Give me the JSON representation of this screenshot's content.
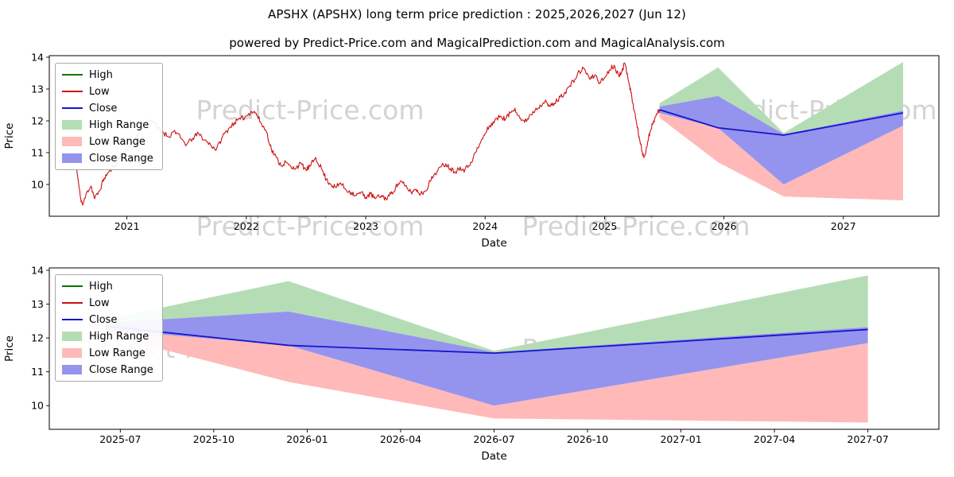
{
  "figure": {
    "title": "APSHX (APSHX) long term price prediction : 2025,2026,2027 (Jun 12)",
    "subtitle": "powered by Predict-Price.com and MagicalPrediction.com and MagicalAnalysis.com",
    "watermark_text": "Predict-Price.com",
    "background": "#ffffff"
  },
  "colors": {
    "high_line": "#007700",
    "low_line": "#cc1111",
    "close_line": "#1515cc",
    "high_range": "#b5ddb5",
    "low_range": "#ffb9b9",
    "close_range": "#9494ee",
    "watermark": "#c9c9c9",
    "axis": "#000000"
  },
  "legend": {
    "items": [
      {
        "label": "High",
        "swatch": "line",
        "color_key": "high_line"
      },
      {
        "label": "Low",
        "swatch": "line",
        "color_key": "low_line"
      },
      {
        "label": "Close",
        "swatch": "line",
        "color_key": "close_line"
      },
      {
        "label": "High Range",
        "swatch": "patch",
        "color_key": "high_range"
      },
      {
        "label": "Low Range",
        "swatch": "patch",
        "color_key": "low_range"
      },
      {
        "label": "Close Range",
        "swatch": "patch",
        "color_key": "close_range"
      }
    ]
  },
  "chart_data": [
    {
      "type": "line",
      "name": "history-and-forecast",
      "title": "",
      "xlabel": "Date",
      "ylabel": "Price",
      "xlim": [
        2020.35,
        2027.8
      ],
      "ylim": [
        9.0,
        14.05
      ],
      "xticks": {
        "values": [
          2021,
          2022,
          2023,
          2024,
          2025,
          2026,
          2027
        ],
        "labels": [
          "2021",
          "2022",
          "2023",
          "2024",
          "2025",
          "2026",
          "2027"
        ]
      },
      "yticks": {
        "values": [
          10,
          11,
          12,
          13,
          14
        ],
        "labels": [
          "10",
          "11",
          "12",
          "13",
          "14"
        ]
      },
      "history": {
        "name": "Low",
        "color_key": "low_line",
        "x": [
          2020.58,
          2020.61,
          2020.63,
          2020.67,
          2020.7,
          2020.73,
          2020.77,
          2020.81,
          2020.85,
          2020.9,
          2020.95,
          2021.0,
          2021.05,
          2021.1,
          2021.15,
          2021.2,
          2021.25,
          2021.3,
          2021.35,
          2021.4,
          2021.45,
          2021.5,
          2021.55,
          2021.6,
          2021.65,
          2021.7,
          2021.75,
          2021.8,
          2021.85,
          2021.9,
          2021.95,
          2022.0,
          2022.04,
          2022.08,
          2022.12,
          2022.17,
          2022.21,
          2022.25,
          2022.29,
          2022.33,
          2022.38,
          2022.42,
          2022.46,
          2022.5,
          2022.54,
          2022.58,
          2022.63,
          2022.67,
          2022.71,
          2022.75,
          2022.79,
          2022.83,
          2022.88,
          2022.92,
          2022.96,
          2023.0,
          2023.04,
          2023.08,
          2023.13,
          2023.17,
          2023.21,
          2023.25,
          2023.29,
          2023.33,
          2023.38,
          2023.42,
          2023.46,
          2023.5,
          2023.54,
          2023.58,
          2023.63,
          2023.67,
          2023.71,
          2023.75,
          2023.79,
          2023.83,
          2023.88,
          2023.92,
          2023.96,
          2024.0,
          2024.04,
          2024.08,
          2024.13,
          2024.17,
          2024.21,
          2024.25,
          2024.29,
          2024.33,
          2024.38,
          2024.42,
          2024.46,
          2024.5,
          2024.54,
          2024.58,
          2024.63,
          2024.67,
          2024.71,
          2024.75,
          2024.79,
          2024.83,
          2024.88,
          2024.92,
          2024.96,
          2025.0,
          2025.04,
          2025.08,
          2025.12,
          2025.15,
          2025.17,
          2025.19,
          2025.21,
          2025.23,
          2025.25,
          2025.27,
          2025.29,
          2025.31,
          2025.33,
          2025.36,
          2025.38,
          2025.4,
          2025.43,
          2025.46
        ],
        "y": [
          10.45,
          9.6,
          9.35,
          9.8,
          9.95,
          9.55,
          9.8,
          10.2,
          10.4,
          10.6,
          10.9,
          11.1,
          11.35,
          11.6,
          11.9,
          12.05,
          11.8,
          11.65,
          11.5,
          11.7,
          11.45,
          11.25,
          11.45,
          11.6,
          11.4,
          11.25,
          11.1,
          11.5,
          11.75,
          11.95,
          12.05,
          12.15,
          12.3,
          12.25,
          11.95,
          11.65,
          11.1,
          10.85,
          10.6,
          10.7,
          10.5,
          10.55,
          10.65,
          10.45,
          10.6,
          10.85,
          10.5,
          10.15,
          10.0,
          9.9,
          10.05,
          9.85,
          9.75,
          9.65,
          9.75,
          9.6,
          9.7,
          9.55,
          9.65,
          9.55,
          9.7,
          9.9,
          10.1,
          9.95,
          9.75,
          9.85,
          9.7,
          9.8,
          10.1,
          10.35,
          10.55,
          10.65,
          10.5,
          10.4,
          10.55,
          10.45,
          10.7,
          11.0,
          11.3,
          11.6,
          11.85,
          12.0,
          12.15,
          12.05,
          12.25,
          12.4,
          12.1,
          11.95,
          12.2,
          12.35,
          12.5,
          12.6,
          12.45,
          12.55,
          12.75,
          12.9,
          13.1,
          13.3,
          13.55,
          13.65,
          13.3,
          13.45,
          13.2,
          13.35,
          13.6,
          13.75,
          13.4,
          13.65,
          13.8,
          13.5,
          13.1,
          12.7,
          12.3,
          11.9,
          11.5,
          11.1,
          10.85,
          11.3,
          11.65,
          11.9,
          12.15,
          12.35
        ]
      },
      "forecast_x": [
        2025.46,
        2025.95,
        2026.5,
        2027.5
      ],
      "forecast": {
        "close": [
          12.35,
          11.78,
          11.55,
          12.25
        ],
        "close_upper": [
          12.45,
          12.78,
          11.58,
          12.32
        ],
        "close_lower": [
          12.25,
          11.78,
          10.0,
          11.85
        ],
        "high_upper": [
          12.55,
          13.68,
          11.62,
          13.85
        ],
        "low_lower": [
          12.1,
          10.7,
          9.62,
          9.5
        ]
      }
    },
    {
      "type": "line",
      "name": "forecast-detail",
      "title": "",
      "xlabel": "Date",
      "ylabel": "Price",
      "xlim": [
        2025.31,
        2027.69
      ],
      "ylim": [
        9.3,
        14.07
      ],
      "xticks": {
        "values": [
          2025.5,
          2025.75,
          2026.0,
          2026.25,
          2026.5,
          2026.75,
          2027.0,
          2027.25,
          2027.5
        ],
        "labels": [
          "2025-07",
          "2025-10",
          "2026-01",
          "2026-04",
          "2026-07",
          "2026-10",
          "2027-01",
          "2027-04",
          "2027-07"
        ]
      },
      "yticks": {
        "values": [
          10,
          11,
          12,
          13,
          14
        ],
        "labels": [
          "10",
          "11",
          "12",
          "13",
          "14"
        ]
      },
      "forecast_x": [
        2025.46,
        2025.95,
        2026.5,
        2027.5
      ],
      "forecast": {
        "close": [
          12.35,
          11.78,
          11.55,
          12.25
        ],
        "close_upper": [
          12.45,
          12.78,
          11.58,
          12.32
        ],
        "close_lower": [
          12.25,
          11.78,
          10.0,
          11.85
        ],
        "high_upper": [
          12.55,
          13.68,
          11.62,
          13.85
        ],
        "low_lower": [
          12.1,
          10.7,
          9.62,
          9.5
        ]
      }
    }
  ]
}
